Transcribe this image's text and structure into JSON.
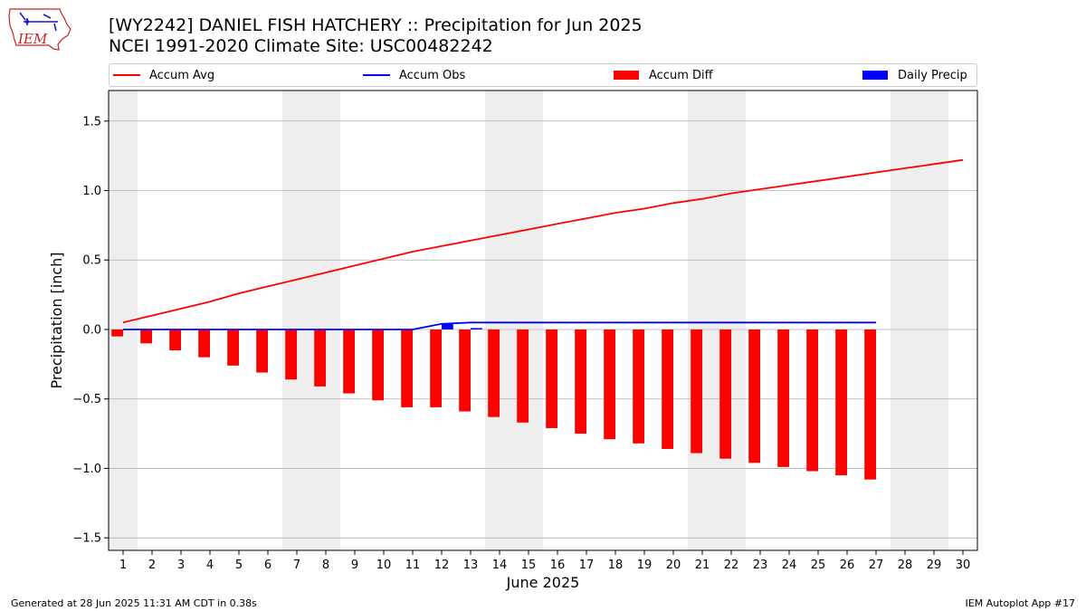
{
  "header": {
    "logo_text": "IEM",
    "title_line1": "[WY2242] DANIEL FISH HATCHERY :: Precipitation for Jun 2025",
    "title_line2": "NCEI 1991-2020 Climate Site: USC00482242"
  },
  "legend": {
    "accum_avg": "Accum Avg",
    "accum_obs": "Accum Obs",
    "accum_diff": "Accum Diff",
    "daily_precip": "Daily Precip"
  },
  "colors": {
    "accum_avg": "#ff0000",
    "accum_obs": "#0000ff",
    "accum_diff": "#ff0000",
    "daily_precip": "#0000ff",
    "weekend_shade": "#eeeeee",
    "grid": "#b0b0b0"
  },
  "footer": {
    "generated": "Generated at 28 Jun 2025 11:31 AM CDT in 0.38s",
    "app": "IEM Autoplot App #17"
  },
  "chart_data": {
    "type": "line",
    "title": "[WY2242] DANIEL FISH HATCHERY :: Precipitation for Jun 2025",
    "subtitle": "NCEI 1991-2020 Climate Site: USC00482242",
    "xlabel": "June 2025",
    "ylabel": "Precipitation [inch]",
    "xlim": [
      0.5,
      30.5
    ],
    "ylim": [
      -1.59,
      1.72
    ],
    "x_ticks": [
      1,
      2,
      3,
      4,
      5,
      6,
      7,
      8,
      9,
      10,
      11,
      12,
      13,
      14,
      15,
      16,
      17,
      18,
      19,
      20,
      21,
      22,
      23,
      24,
      25,
      26,
      27,
      28,
      29,
      30
    ],
    "y_ticks": [
      -1.5,
      -1.0,
      -0.5,
      0.0,
      0.5,
      1.0,
      1.5
    ],
    "y_tick_labels": [
      "−1.5",
      "−1.0",
      "−0.5",
      "0.0",
      "0.5",
      "1.0",
      "1.5"
    ],
    "grid": "horizontal",
    "legend_position": "top",
    "weekend_shading_days": [
      [
        1,
        1
      ],
      [
        7,
        8
      ],
      [
        14,
        15
      ],
      [
        21,
        22
      ],
      [
        28,
        29
      ]
    ],
    "series": [
      {
        "name": "Accum Avg",
        "kind": "line",
        "x": [
          1,
          2,
          3,
          4,
          5,
          6,
          7,
          8,
          9,
          10,
          11,
          12,
          13,
          14,
          15,
          16,
          17,
          18,
          19,
          20,
          21,
          22,
          23,
          24,
          25,
          26,
          27,
          28,
          29,
          30
        ],
        "values": [
          0.05,
          0.1,
          0.15,
          0.2,
          0.26,
          0.31,
          0.36,
          0.41,
          0.46,
          0.51,
          0.56,
          0.6,
          0.64,
          0.68,
          0.72,
          0.76,
          0.8,
          0.84,
          0.87,
          0.91,
          0.94,
          0.98,
          1.01,
          1.04,
          1.07,
          1.1,
          1.13,
          1.16,
          1.19,
          1.22
        ]
      },
      {
        "name": "Accum Obs",
        "kind": "line",
        "x": [
          1,
          2,
          3,
          4,
          5,
          6,
          7,
          8,
          9,
          10,
          11,
          12,
          13,
          14,
          15,
          16,
          17,
          18,
          19,
          20,
          21,
          22,
          23,
          24,
          25,
          26,
          27
        ],
        "values": [
          0,
          0,
          0,
          0,
          0,
          0,
          0,
          0,
          0,
          0,
          0,
          0.04,
          0.05,
          0.05,
          0.05,
          0.05,
          0.05,
          0.05,
          0.05,
          0.05,
          0.05,
          0.05,
          0.05,
          0.05,
          0.05,
          0.05,
          0.05
        ]
      },
      {
        "name": "Accum Diff",
        "kind": "bar",
        "x": [
          1,
          2,
          3,
          4,
          5,
          6,
          7,
          8,
          9,
          10,
          11,
          12,
          13,
          14,
          15,
          16,
          17,
          18,
          19,
          20,
          21,
          22,
          23,
          24,
          25,
          26,
          27
        ],
        "values": [
          -0.05,
          -0.1,
          -0.15,
          -0.2,
          -0.26,
          -0.31,
          -0.36,
          -0.41,
          -0.46,
          -0.51,
          -0.56,
          -0.56,
          -0.59,
          -0.63,
          -0.67,
          -0.71,
          -0.75,
          -0.79,
          -0.82,
          -0.86,
          -0.89,
          -0.93,
          -0.96,
          -0.99,
          -1.02,
          -1.05,
          -1.08
        ]
      },
      {
        "name": "Daily Precip",
        "kind": "bar",
        "x": [
          12,
          13
        ],
        "values": [
          0.04,
          0.01
        ]
      }
    ]
  }
}
